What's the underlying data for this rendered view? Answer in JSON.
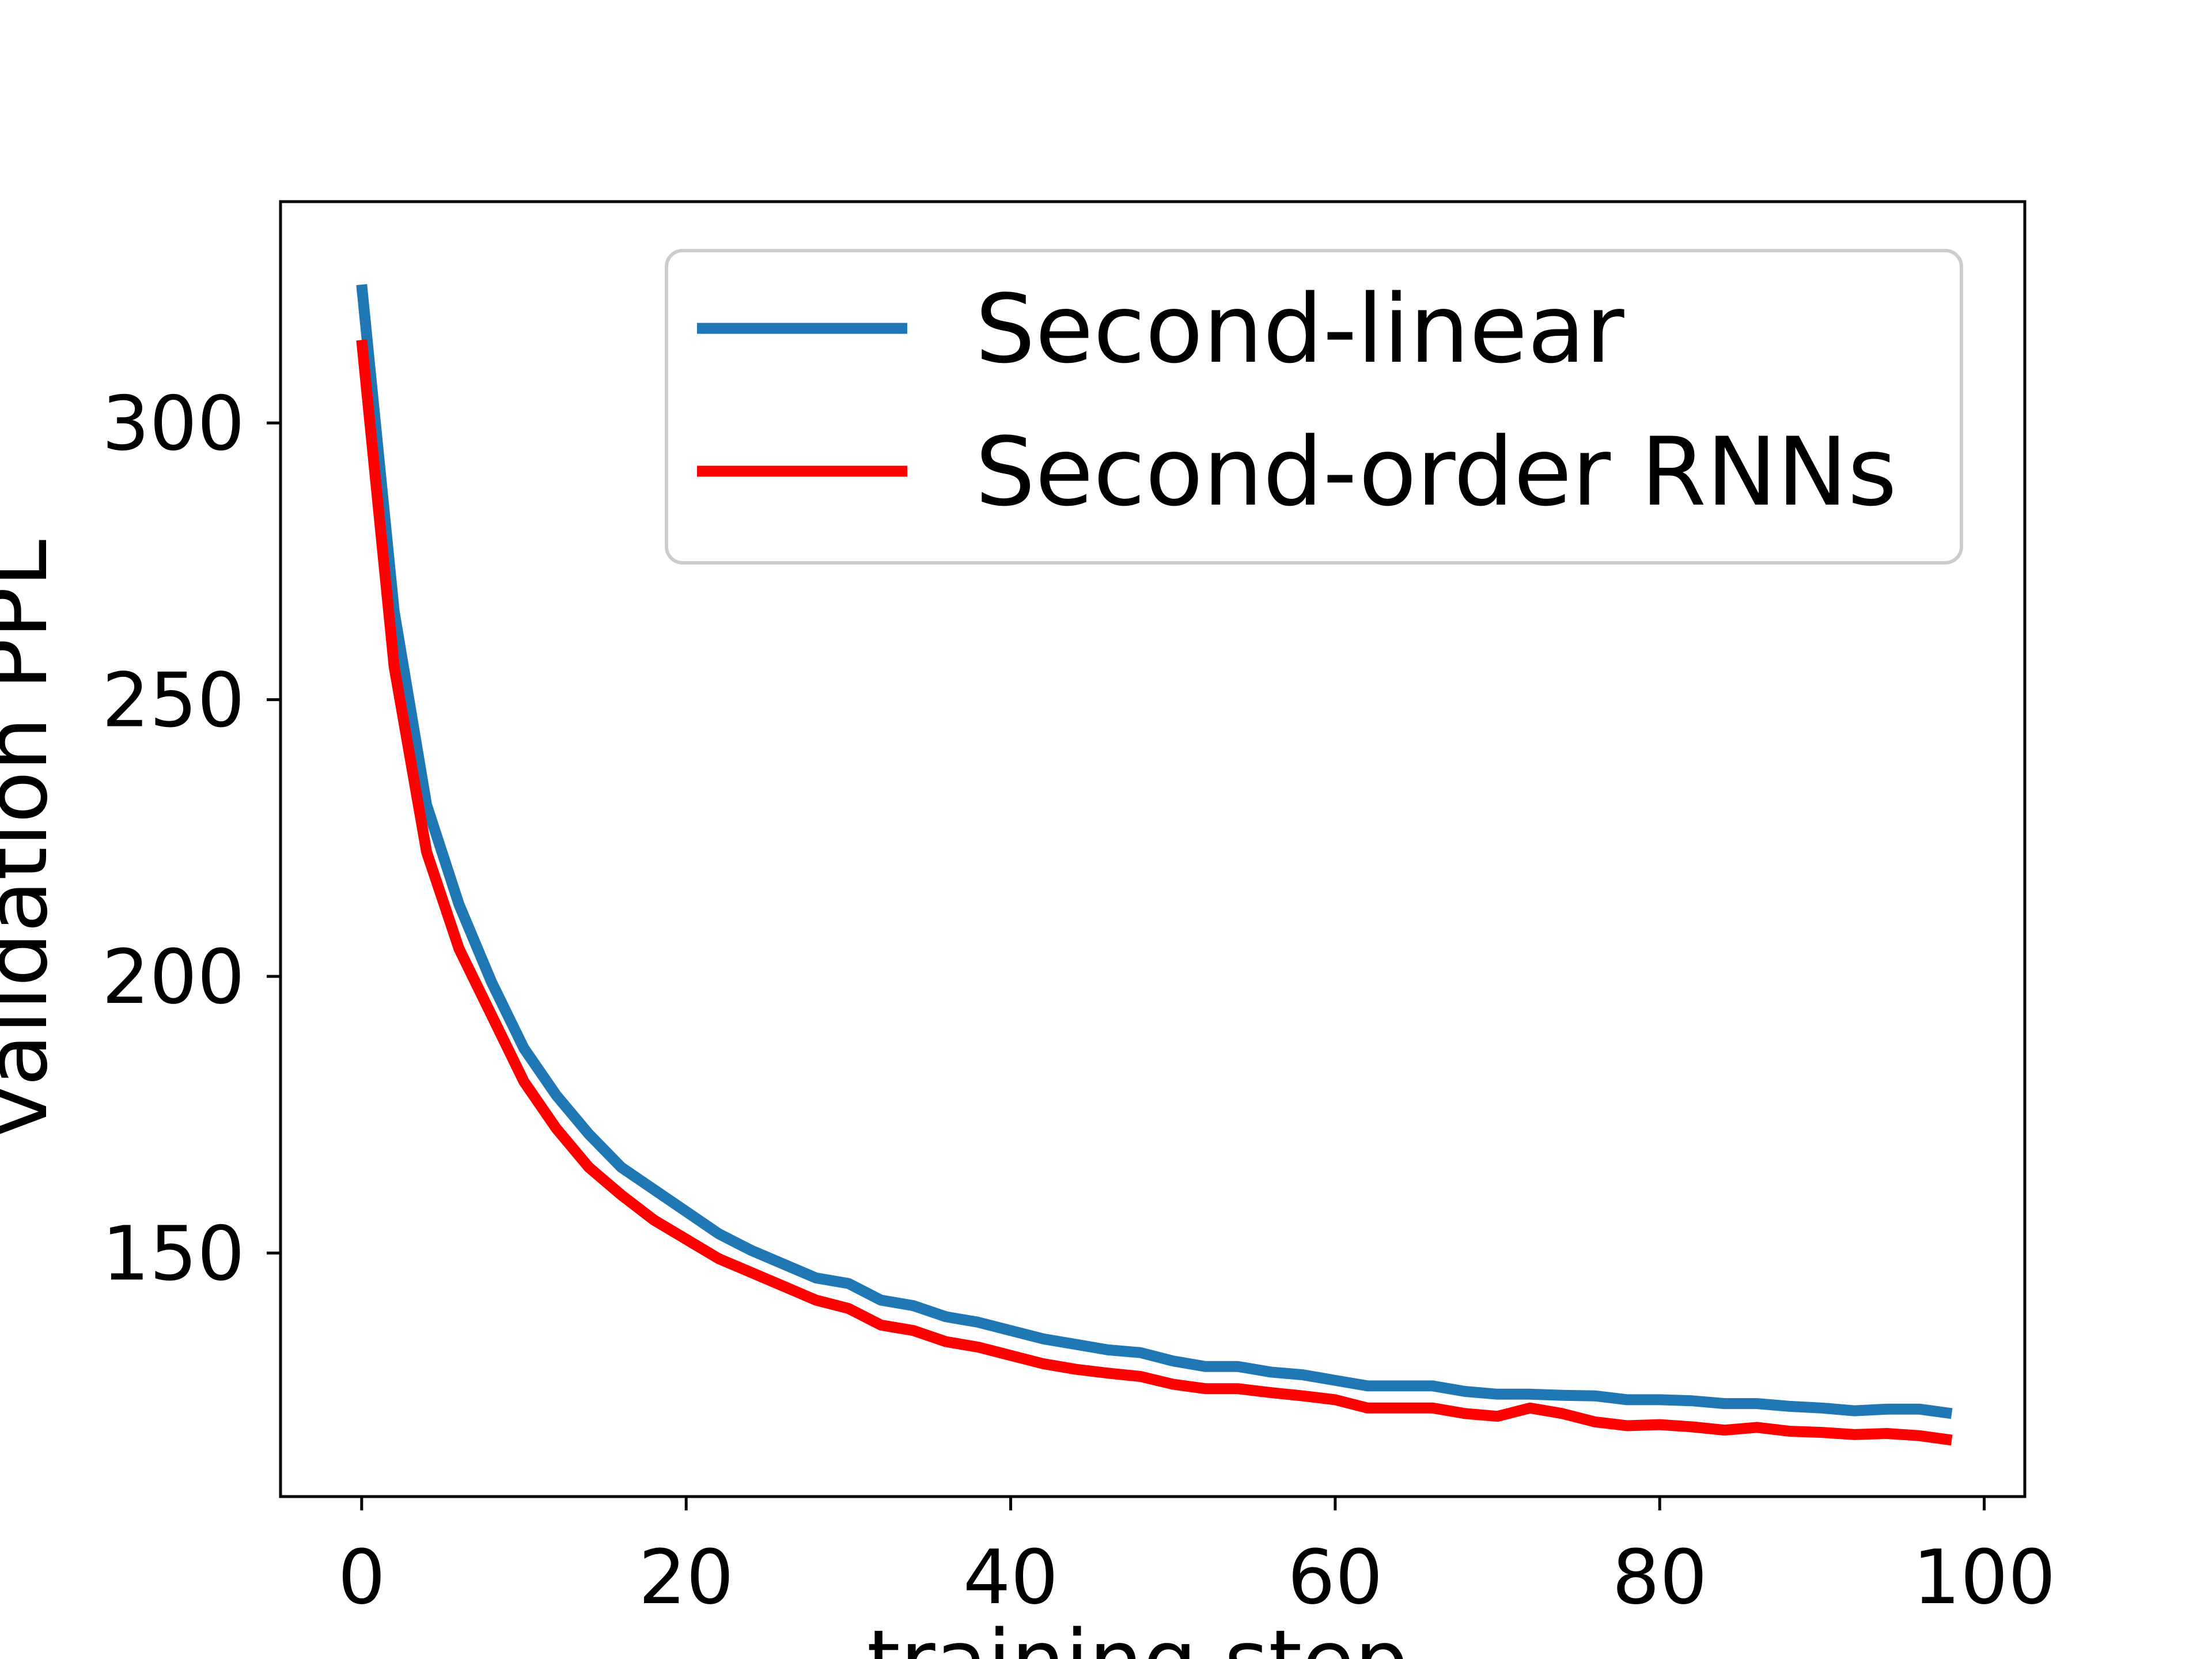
{
  "chart_data": {
    "type": "line",
    "title": "",
    "xlabel": "training step",
    "ylabel": "validation PPL",
    "xlim": [
      -5,
      102.5
    ],
    "ylim": [
      106,
      340
    ],
    "xticks": [
      0,
      20,
      40,
      60,
      80,
      100
    ],
    "yticks": [
      150,
      200,
      250,
      300
    ],
    "x_tick_labels": [
      "0",
      "20",
      "40",
      "60",
      "80",
      "100"
    ],
    "y_tick_labels": [
      "150",
      "200",
      "250",
      "300"
    ],
    "grid": false,
    "legend_position": "upper-right",
    "x": [
      0,
      2,
      4,
      6,
      8,
      10,
      12,
      14,
      16,
      18,
      20,
      22,
      24,
      26,
      28,
      30,
      32,
      34,
      36,
      38,
      40,
      42,
      44,
      46,
      48,
      50,
      52,
      54,
      56,
      58,
      60,
      62,
      64,
      66,
      68,
      70,
      72,
      74,
      76,
      78,
      80,
      82,
      84,
      86,
      88,
      90,
      92,
      94,
      96,
      98
    ],
    "series": [
      {
        "name": "Second-linear",
        "color": "#1f77b4",
        "values": [
          325,
          266,
          231,
          213,
          199,
          187,
          178.5,
          171.5,
          165.5,
          161.5,
          157.5,
          153.5,
          150.5,
          148,
          145.5,
          144.5,
          141.5,
          140.5,
          138.5,
          137.5,
          136,
          134.5,
          133.5,
          132.5,
          132,
          130.5,
          129.5,
          129.5,
          128.5,
          128,
          127,
          126,
          126,
          126,
          125,
          124.5,
          124.5,
          124.3,
          124.2,
          123.5,
          123.5,
          123.3,
          122.8,
          122.8,
          122.3,
          122,
          121.5,
          121.8,
          121.8,
          121
        ]
      },
      {
        "name": "Second-order RNNs",
        "color": "#ff0000",
        "values": [
          315,
          256,
          222.5,
          205,
          193,
          181,
          172.5,
          165.5,
          160.5,
          156,
          152.5,
          149,
          146.5,
          144,
          141.5,
          140,
          137,
          136,
          134,
          133,
          131.5,
          130,
          129,
          128.3,
          127.7,
          126.3,
          125.5,
          125.5,
          124.8,
          124.2,
          123.5,
          122,
          122,
          122,
          121,
          120.5,
          122,
          121,
          119.5,
          118.8,
          119,
          118.6,
          118,
          118.5,
          117.8,
          117.6,
          117.2,
          117.4,
          117,
          116.2
        ]
      }
    ]
  }
}
